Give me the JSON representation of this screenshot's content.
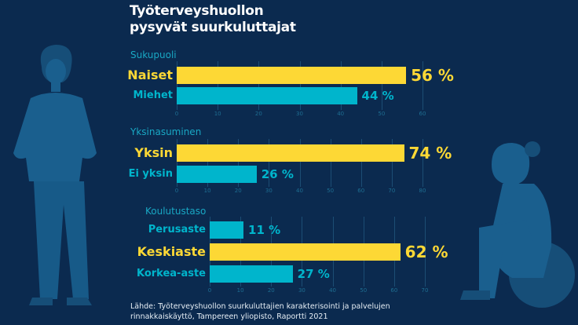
{
  "title": [
    "Työterveyshuollon",
    "pysyvät suurkuluttajat"
  ],
  "colors": {
    "background": "#0b2a4f",
    "highlight": "#fdd835",
    "other": "#00b5cc",
    "figure": "#1a5f8e"
  },
  "chart_data": [
    {
      "type": "bar",
      "title": "Sukupuoli",
      "categories": [
        "Naiset",
        "Miehet"
      ],
      "values": [
        56,
        44
      ],
      "labels": [
        "56 %",
        "44 %"
      ],
      "highlight": [
        true,
        false
      ],
      "xlim": [
        0,
        60
      ],
      "ticks": [
        0,
        10,
        20,
        30,
        40,
        50,
        60
      ],
      "grid": true
    },
    {
      "type": "bar",
      "title": "Yksinasuminen",
      "categories": [
        "Yksin",
        "Ei yksin"
      ],
      "values": [
        74,
        26
      ],
      "labels": [
        "74 %",
        "26 %"
      ],
      "highlight": [
        true,
        false
      ],
      "xlim": [
        0,
        80
      ],
      "ticks": [
        0,
        10,
        20,
        30,
        40,
        50,
        60,
        70,
        80
      ],
      "grid": true
    },
    {
      "type": "bar",
      "title": "Koulutustaso",
      "categories": [
        "Perusaste",
        "Keskiaste",
        "Korkea-aste"
      ],
      "values": [
        11,
        62,
        27
      ],
      "labels": [
        "11 %",
        "62 %",
        "27 %"
      ],
      "highlight": [
        false,
        true,
        false
      ],
      "xlim": [
        0,
        70
      ],
      "ticks": [
        0,
        10,
        20,
        30,
        40,
        50,
        60,
        70
      ],
      "grid": true
    }
  ],
  "source": [
    "Lähde: Työterveyshuollon suurkuluttajien karakterisointi ja palvelujen",
    "rinnakkaiskäyttö, Tampereen yliopisto, Raportti 2021"
  ]
}
